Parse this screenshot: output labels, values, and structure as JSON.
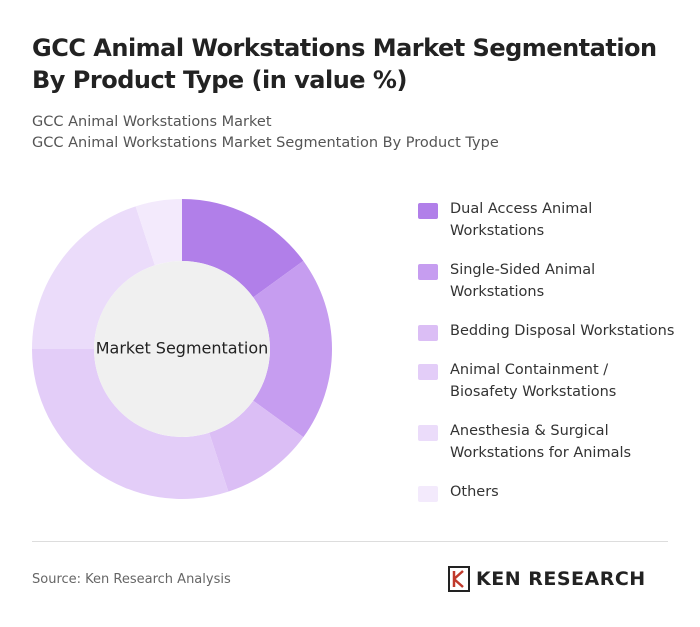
{
  "title": "GCC Animal Workstations Market Segmentation By Product Type (in value %)",
  "subtitle": [
    "GCC Animal Workstations Market",
    "GCC Animal Workstations Market Segmentation By Product Type"
  ],
  "chart_data": {
    "type": "donut",
    "center_label": "Market Segmentation",
    "categories": [
      "Dual Access Animal Workstations",
      "Single-Sided Animal Workstations",
      "Bedding Disposal Workstations",
      "Animal Containment / Biosafety Workstations",
      "Anesthesia & Surgical Workstations for Animals",
      "Others"
    ],
    "values": [
      15,
      20,
      10,
      30,
      20,
      5
    ],
    "colors": [
      "#b17fe9",
      "#c69df0",
      "#dbbef5",
      "#e3cdf8",
      "#ebdcfa",
      "#f3eafc"
    ]
  },
  "source": "Source: Ken Research Analysis",
  "logo": "KEN RESEARCH"
}
